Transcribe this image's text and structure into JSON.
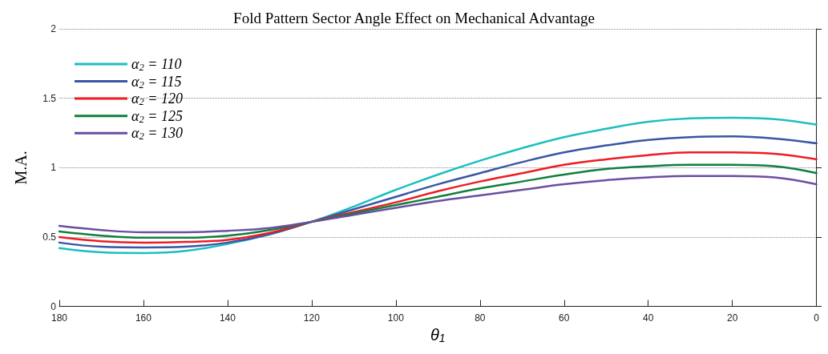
{
  "chart_data": {
    "type": "line",
    "title": "Fold Pattern Sector Angle Effect on Mechanical Advantage",
    "xlabel": "θ$_{1}$",
    "ylabel": "M.A.",
    "x": [
      180,
      170,
      160,
      150,
      140,
      130,
      120,
      110,
      100,
      90,
      80,
      70,
      60,
      50,
      40,
      30,
      20,
      10,
      0
    ],
    "series": [
      {
        "name": "α$_{2}$ = 110",
        "color": "#1bbfc0",
        "values": [
          0.42,
          0.39,
          0.385,
          0.4,
          0.45,
          0.52,
          0.61,
          0.72,
          0.84,
          0.95,
          1.05,
          1.14,
          1.22,
          1.28,
          1.33,
          1.355,
          1.36,
          1.35,
          1.31
        ]
      },
      {
        "name": "α$_{2}$ = 115",
        "color": "#3a55a4",
        "values": [
          0.46,
          0.43,
          0.425,
          0.43,
          0.46,
          0.52,
          0.61,
          0.7,
          0.79,
          0.88,
          0.96,
          1.04,
          1.11,
          1.16,
          1.2,
          1.22,
          1.225,
          1.21,
          1.175
        ]
      },
      {
        "name": "α$_{2}$ = 120",
        "color": "#ed1c24",
        "values": [
          0.5,
          0.47,
          0.46,
          0.465,
          0.48,
          0.53,
          0.61,
          0.68,
          0.75,
          0.83,
          0.9,
          0.96,
          1.02,
          1.06,
          1.09,
          1.11,
          1.11,
          1.1,
          1.06
        ]
      },
      {
        "name": "α$_{2}$ = 125",
        "color": "#0f7f3f",
        "values": [
          0.54,
          0.51,
          0.495,
          0.495,
          0.51,
          0.55,
          0.61,
          0.67,
          0.73,
          0.79,
          0.85,
          0.9,
          0.95,
          0.99,
          1.01,
          1.02,
          1.02,
          1.01,
          0.96
        ]
      },
      {
        "name": "α$_{2}$ = 130",
        "color": "#6a4ea0",
        "values": [
          0.58,
          0.55,
          0.535,
          0.535,
          0.545,
          0.565,
          0.61,
          0.66,
          0.71,
          0.76,
          0.8,
          0.84,
          0.88,
          0.91,
          0.93,
          0.94,
          0.94,
          0.93,
          0.88
        ]
      }
    ],
    "xlim": [
      180,
      0
    ],
    "xticks": [
      180,
      160,
      140,
      120,
      100,
      80,
      60,
      40,
      20,
      0
    ],
    "ylim": [
      0,
      2
    ],
    "yticks": [
      0,
      0.5,
      1,
      1.5,
      2
    ],
    "grid": "y",
    "legend": "top left",
    "marker": "none",
    "line_style": "solid"
  }
}
